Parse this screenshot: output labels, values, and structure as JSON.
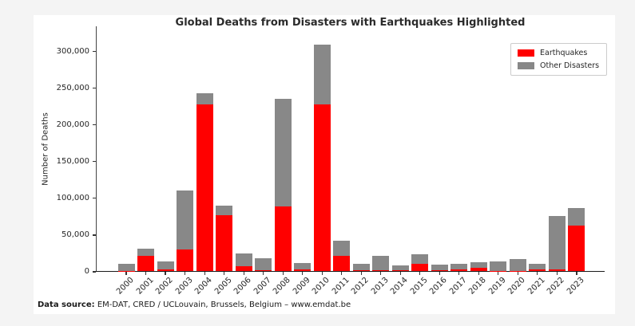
{
  "page": {
    "background_color": "#f4f4f4",
    "card_color": "#ffffff"
  },
  "chart": {
    "source_prefix": "Data source:",
    "source_body": " EM-DAT, CRED / UCLouvain, Brussels, Belgium – www.emdat.be"
  },
  "chart_data": {
    "type": "bar",
    "stacked": true,
    "title": "Global Deaths from Disasters with Earthquakes Highlighted",
    "xlabel": "",
    "ylabel": "Number of Deaths",
    "grid": false,
    "legend_position": "upper right",
    "ylim": [
      0,
      335000
    ],
    "yticks": [
      0,
      50000,
      100000,
      150000,
      200000,
      250000,
      300000
    ],
    "ytick_labels": [
      "0",
      "50,000",
      "100,000",
      "150,000",
      "200,000",
      "250,000",
      "300,000"
    ],
    "categories": [
      "2000",
      "2001",
      "2002",
      "2003",
      "2004",
      "2005",
      "2006",
      "2007",
      "2008",
      "2009",
      "2010",
      "2011",
      "2012",
      "2013",
      "2014",
      "2015",
      "2016",
      "2017",
      "2018",
      "2019",
      "2020",
      "2021",
      "2022",
      "2023"
    ],
    "series": [
      {
        "name": "Earthquakes",
        "color": "#ff0000",
        "values": [
          200,
          21000,
          1700,
          29600,
          227000,
          76000,
          6800,
          800,
          87500,
          1900,
          227000,
          20300,
          700,
          1100,
          800,
          9600,
          1300,
          2500,
          4500,
          300,
          200,
          2600,
          1900,
          62000
        ]
      },
      {
        "name": "Other Disasters",
        "color": "#888888",
        "values": [
          9500,
          9000,
          11300,
          80000,
          15000,
          13000,
          16700,
          16200,
          147500,
          9100,
          81000,
          20700,
          8800,
          19900,
          6800,
          13400,
          7400,
          7500,
          7500,
          12600,
          15800,
          7500,
          73500,
          24000
        ]
      }
    ]
  }
}
